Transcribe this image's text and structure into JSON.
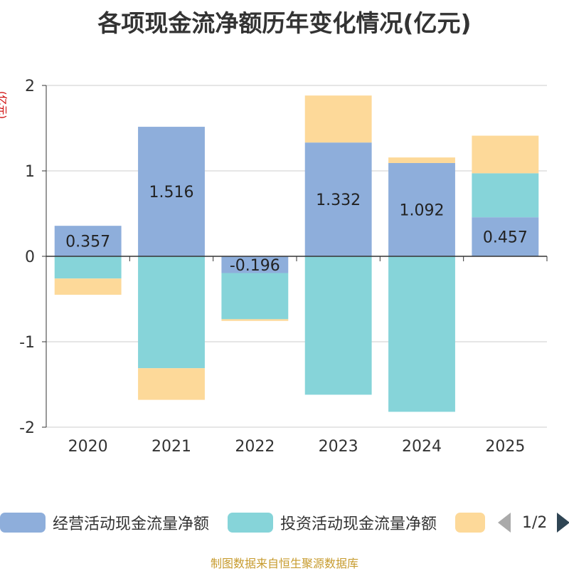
{
  "chart_data": {
    "type": "bar",
    "stacked": true,
    "title": "各项现金流净额历年变化情况(亿元)",
    "ylabel": "(亿元)",
    "xlabel": "",
    "categories": [
      "2020",
      "2021",
      "2022",
      "2023",
      "2024",
      "2025"
    ],
    "ylim": [
      -2,
      2
    ],
    "yticks": [
      2,
      1,
      0,
      -1,
      -2
    ],
    "series": [
      {
        "name": "经营活动现金流量净额",
        "color": "#8eaedb",
        "values": [
          0.357,
          1.516,
          -0.196,
          1.332,
          1.092,
          0.457
        ]
      },
      {
        "name": "投资活动现金流量净额",
        "color": "#86d4d9",
        "values": [
          -0.26,
          -1.31,
          -0.54,
          -1.62,
          -1.82,
          0.515
        ]
      },
      {
        "name": "",
        "color": "#fdd999",
        "values": [
          -0.19,
          -0.37,
          -0.02,
          0.55,
          0.065,
          0.44
        ]
      }
    ],
    "data_labels": [
      "0.357",
      "1.516",
      "-0.196",
      "1.332",
      "1.092",
      "0.457"
    ],
    "legend_position": "bottom"
  },
  "legend": {
    "page": "1/2"
  },
  "source": "制图数据来自恒生聚源数据库"
}
